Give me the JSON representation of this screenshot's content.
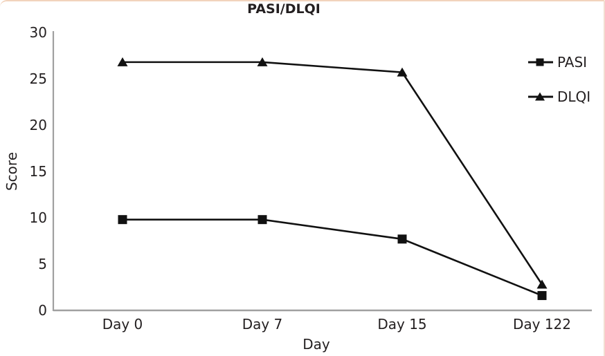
{
  "card": {
    "accent_border_color": "#f2d3bc"
  },
  "chart_data": {
    "type": "line",
    "title": "PASI/DLQI",
    "xlabel": "Day",
    "ylabel": "Score",
    "categories": [
      "Day 0",
      "Day 7",
      "Day 15",
      "Day 122"
    ],
    "series": [
      {
        "name": "PASI",
        "marker": "square",
        "values": [
          9.8,
          9.8,
          7.7,
          1.6
        ]
      },
      {
        "name": "DLQI",
        "marker": "triangle",
        "values": [
          26.8,
          26.8,
          25.7,
          2.8
        ]
      }
    ],
    "ylim": [
      0,
      30
    ],
    "yticks": [
      0,
      5,
      10,
      15,
      20,
      25,
      30
    ],
    "grid": false,
    "legend_position": "right",
    "line_color": "#111111",
    "axis_color": "#a0a0a0",
    "text_color": "#231f20"
  }
}
